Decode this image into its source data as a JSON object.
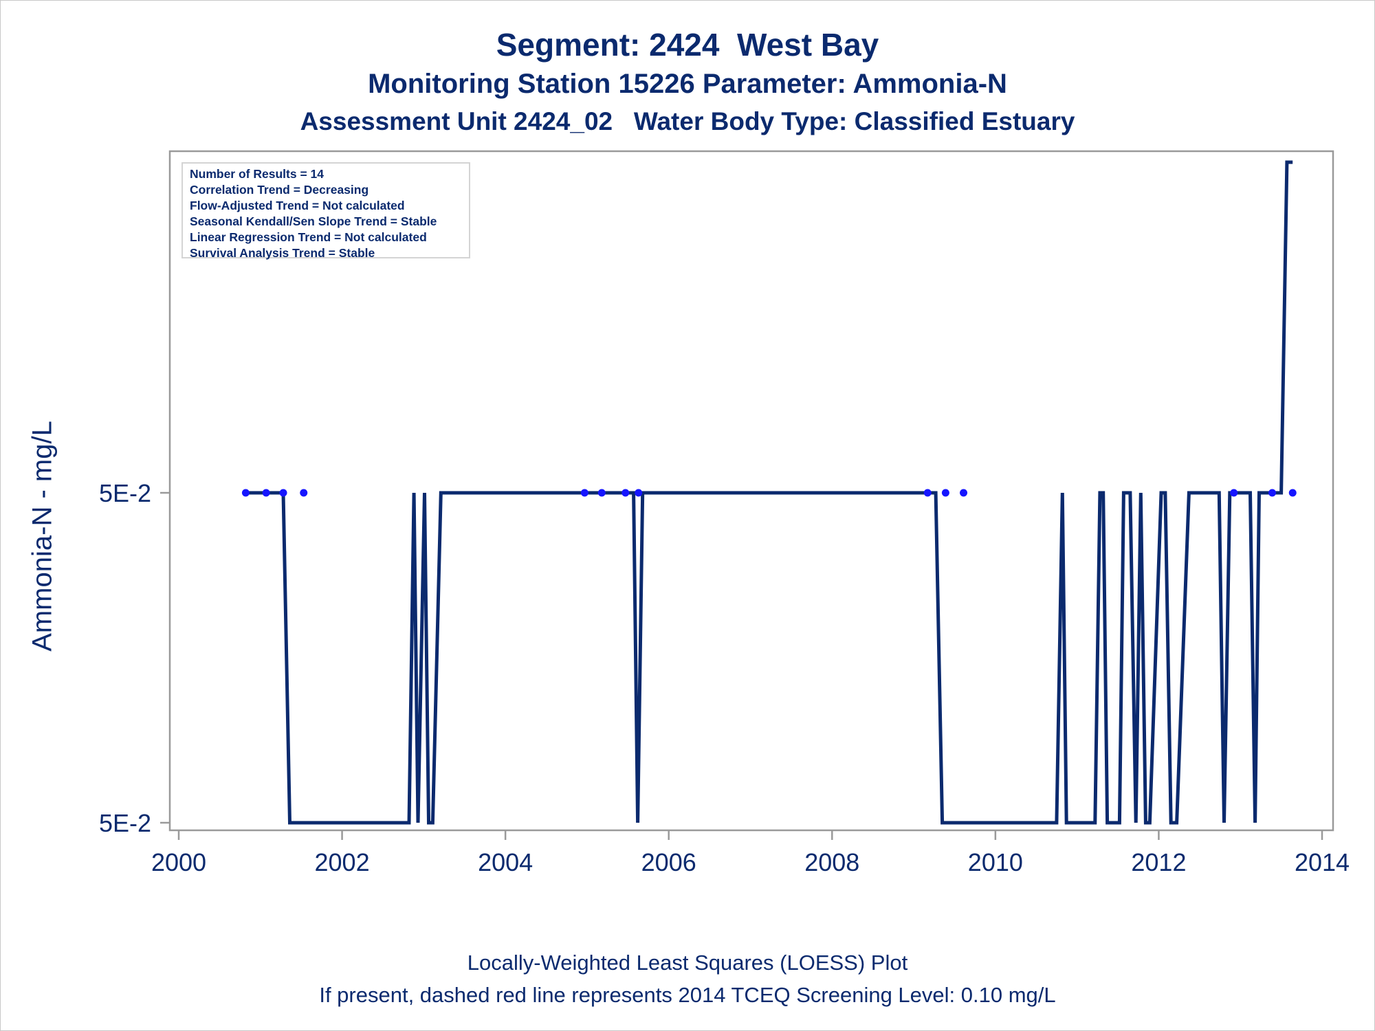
{
  "titles": {
    "line1": "Segment: 2424  West Bay",
    "line2": "Monitoring Station 15226 Parameter: Ammonia-N",
    "line3": "Assessment Unit 2424_02   Water Body Type: Classified Estuary"
  },
  "footer": {
    "line1": "Locally-Weighted Least Squares (LOESS) Plot",
    "line2": "If present, dashed red line represents 2014 TCEQ Screening Level: 0.10 mg/L"
  },
  "stats_box": [
    "Number of Results = 14",
    "Correlation Trend = Decreasing",
    "Flow-Adjusted Trend = Not calculated",
    "Seasonal Kendall/Sen Slope Trend = Stable",
    "Linear Regression Trend = Not calculated",
    "Survival Analysis Trend = Stable"
  ],
  "colors": {
    "text": "#0b2a6e",
    "loess_line": "#0b2a6e",
    "points": "#1515ff",
    "axis": "#9a9a9a"
  },
  "chart_data": {
    "type": "line",
    "ylabel": "Ammonia-N - mg/L",
    "xlabel": "",
    "xlim": [
      2000,
      2014
    ],
    "x_ticks": [
      "2000",
      "2002",
      "2004",
      "2006",
      "2008",
      "2010",
      "2012",
      "2014"
    ],
    "y_tick_labels": [
      "5E-2",
      "5E-2"
    ],
    "legend_position": "top-left",
    "grid": false,
    "series": [
      {
        "kind": "scatter",
        "x": [
          2000.82,
          2001.07,
          2001.28,
          2001.53,
          2004.97,
          2005.18,
          2005.47,
          2005.63,
          2009.17,
          2009.39,
          2009.61,
          2012.92,
          2013.39,
          2013.64
        ],
        "y": [
          0.05,
          0.05,
          0.05,
          0.05,
          0.05,
          0.05,
          0.05,
          0.05,
          0.05,
          0.05,
          0.05,
          0.05,
          0.05,
          0.05
        ]
      },
      {
        "kind": "line",
        "x": [
          2000.82,
          2001.28,
          2001.36,
          2002.82,
          2002.88,
          2002.93,
          2003.01,
          2003.06,
          2003.11,
          2003.21,
          2005.57,
          2005.62,
          2005.68,
          2009.27,
          2009.35,
          2010.75,
          2010.82,
          2010.87,
          2011.22,
          2011.28,
          2011.32,
          2011.37,
          2011.52,
          2011.57,
          2011.65,
          2011.72,
          2011.78,
          2011.84,
          2011.89,
          2012.03,
          2012.08,
          2012.15,
          2012.22,
          2012.37,
          2012.42,
          2012.74,
          2012.8,
          2012.87,
          2013.12,
          2013.18,
          2013.23,
          2013.28,
          2013.5,
          2013.57,
          2013.64
        ],
        "y": [
          0.05,
          0.05,
          0.045,
          0.045,
          0.05,
          0.045,
          0.05,
          0.045,
          0.045,
          0.05,
          0.05,
          0.045,
          0.05,
          0.05,
          0.045,
          0.045,
          0.05,
          0.045,
          0.045,
          0.05,
          0.05,
          0.045,
          0.045,
          0.05,
          0.05,
          0.045,
          0.05,
          0.045,
          0.045,
          0.05,
          0.05,
          0.045,
          0.045,
          0.05,
          0.05,
          0.05,
          0.045,
          0.05,
          0.05,
          0.045,
          0.05,
          0.05,
          0.05,
          0.055,
          0.055
        ]
      }
    ]
  }
}
